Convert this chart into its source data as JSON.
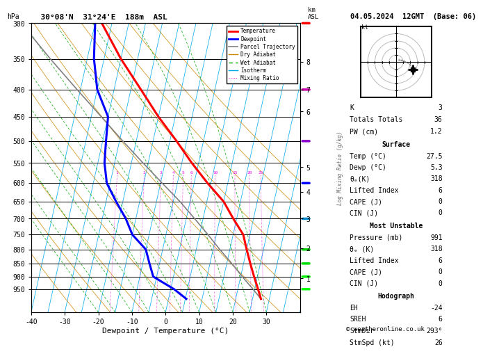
{
  "title_left": "30°08'N  31°24'E  188m  ASL",
  "title_right": "04.05.2024  12GMT  (Base: 06)",
  "xlabel": "Dewpoint / Temperature (°C)",
  "ylabel_left": "hPa",
  "pressure_levels_minor": [
    300,
    350,
    400,
    450,
    500,
    550,
    600,
    650,
    700,
    750,
    800,
    850,
    900,
    950
  ],
  "pressure_major_labels": [
    300,
    350,
    400,
    450,
    500,
    550,
    600,
    650,
    700,
    750,
    800,
    850,
    900,
    950
  ],
  "temp_range": [
    -40,
    40
  ],
  "temp_ticks": [
    -40,
    -30,
    -20,
    -10,
    0,
    10,
    20,
    30
  ],
  "pressure_min": 300,
  "pressure_max": 1050,
  "skew_factor": 35.0,
  "isotherm_temps": [
    -40,
    -35,
    -30,
    -25,
    -20,
    -15,
    -10,
    -5,
    0,
    5,
    10,
    15,
    20,
    25,
    30,
    35,
    40
  ],
  "dry_adiabat_theta": [
    -30,
    -20,
    -10,
    0,
    10,
    20,
    30,
    40,
    50,
    60,
    70,
    80
  ],
  "wet_adiabat_T0": [
    -20,
    -15,
    -10,
    -5,
    0,
    5,
    10,
    15,
    20,
    25,
    30
  ],
  "mixing_ratio_vals": [
    1,
    2,
    3,
    4,
    5,
    6,
    10,
    15,
    20,
    25
  ],
  "temperature_profile": {
    "pressure": [
      991,
      950,
      900,
      850,
      800,
      750,
      700,
      650,
      600,
      550,
      500,
      450,
      400,
      350,
      300
    ],
    "temp": [
      27.5,
      26,
      24,
      22,
      20,
      18,
      14,
      10,
      4,
      -2,
      -8,
      -15,
      -22,
      -30,
      -38
    ]
  },
  "dewpoint_profile": {
    "pressure": [
      991,
      950,
      900,
      850,
      800,
      750,
      700,
      650,
      600,
      550,
      500,
      450,
      400,
      350,
      300
    ],
    "temp": [
      5.3,
      1,
      -6,
      -8,
      -10,
      -15,
      -18,
      -22,
      -26,
      -28,
      -29,
      -30,
      -35,
      -38,
      -40
    ]
  },
  "parcel_profile": {
    "pressure": [
      991,
      950,
      900,
      850,
      800,
      750,
      700,
      650,
      600,
      550,
      500,
      450,
      400,
      350,
      300
    ],
    "temp": [
      27.5,
      24.5,
      20.5,
      16.5,
      12.0,
      7.5,
      2.5,
      -3.0,
      -9.5,
      -16.5,
      -24.0,
      -32.0,
      -41.0,
      -51.0,
      -62.0
    ]
  },
  "color_temperature": "#ff0000",
  "color_dewpoint": "#0000ff",
  "color_parcel": "#808080",
  "color_dry_adiabat": "#cc8800",
  "color_wet_adiabat": "#00aa00",
  "color_isotherm": "#00aaee",
  "color_mixing_ratio": "#ee00ee",
  "color_background": "#ffffff",
  "lw_temp": 2.2,
  "lw_dew": 2.2,
  "lw_parcel": 1.2,
  "lw_bg": 0.6,
  "km_ticks": [
    1,
    2,
    3,
    4,
    5,
    6,
    7,
    8
  ],
  "km_pressures": [
    907,
    795,
    700,
    623,
    560,
    440,
    400,
    355
  ],
  "stats": {
    "K": 3,
    "Totals_Totals": 36,
    "PW_cm": 1.2,
    "Surface_Temp": 27.5,
    "Surface_Dewp": 5.3,
    "Surface_thetae": 318,
    "Surface_LI": 6,
    "Surface_CAPE": 0,
    "Surface_CIN": 0,
    "MU_Pressure": 991,
    "MU_thetae": 318,
    "MU_LI": 6,
    "MU_CAPE": 0,
    "MU_CIN": 0,
    "Hodo_EH": -24,
    "Hodo_SREH": 6,
    "Hodo_StmDir": 293,
    "Hodo_StmSpd": 26
  },
  "wind_indicator_pressures": [
    300,
    400,
    500,
    600,
    700,
    800,
    850,
    900,
    950
  ],
  "wind_indicator_colors": [
    "#ff0000",
    "#cc00aa",
    "#8800cc",
    "#0000ff",
    "#0088cc",
    "#00cc00",
    "#00dd00",
    "#00ee00",
    "#00ff00"
  ]
}
